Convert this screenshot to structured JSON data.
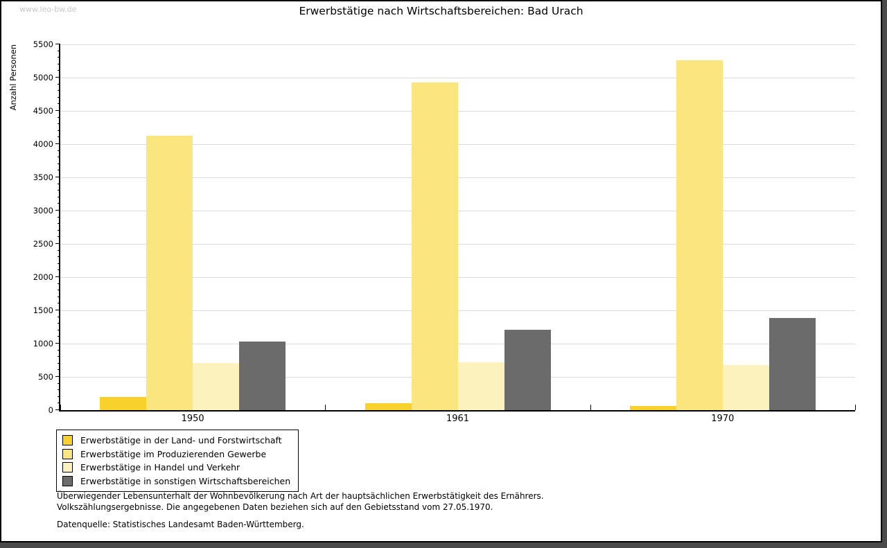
{
  "watermark": "www.leo-bw.de",
  "title": "Erwerbstätige nach Wirtschaftsbereichen: Bad Urach",
  "chart_data": {
    "type": "bar",
    "title": "Erwerbstätige nach Wirtschaftsbereichen: Bad Urach",
    "xlabel": "",
    "ylabel": "Anzahl Personen",
    "categories": [
      "1950",
      "1961",
      "1970"
    ],
    "series": [
      {
        "name": "Erwerbstätige in der Land- und Forstwirtschaft",
        "color": "#F9D12C",
        "values": [
          200,
          100,
          65
        ]
      },
      {
        "name": "Erwerbstätige im Produzierenden Gewerbe",
        "color": "#FAE57F",
        "values": [
          4120,
          4930,
          5260
        ]
      },
      {
        "name": "Erwerbstätige in Handel und Verkehr",
        "color": "#FCF2BE",
        "values": [
          710,
          720,
          680
        ]
      },
      {
        "name": "Erwerbstätige in sonstigen Wirtschaftsbereichen",
        "color": "#6B6B6B",
        "values": [
          1030,
          1210,
          1390
        ]
      }
    ],
    "ylim": [
      0,
      5500
    ],
    "yticks": [
      0,
      500,
      1000,
      1500,
      2000,
      2500,
      3000,
      3500,
      4000,
      4500,
      5000,
      5500
    ],
    "minor_tick_step": 100,
    "grid": "horizontal",
    "legend_position": "bottom-left"
  },
  "footnotes": {
    "line1": "Überwiegender Lebensunterhalt der Wohnbevölkerung nach Art der hauptsächlichen Erwerbstätigkeit des Ernährers.",
    "line2": "Volkszählungsergebnisse. Die angegebenen Daten beziehen sich auf den Gebietsstand vom 27.05.1970.",
    "source": "Datenquelle: Statistisches Landesamt Baden-Württemberg."
  },
  "colors": {
    "grid": "#dcdcdc",
    "axis": "#000000",
    "watermark": "#c8c8c8",
    "frame_shadow": "#4a4a4a",
    "background": "#ffffff"
  }
}
